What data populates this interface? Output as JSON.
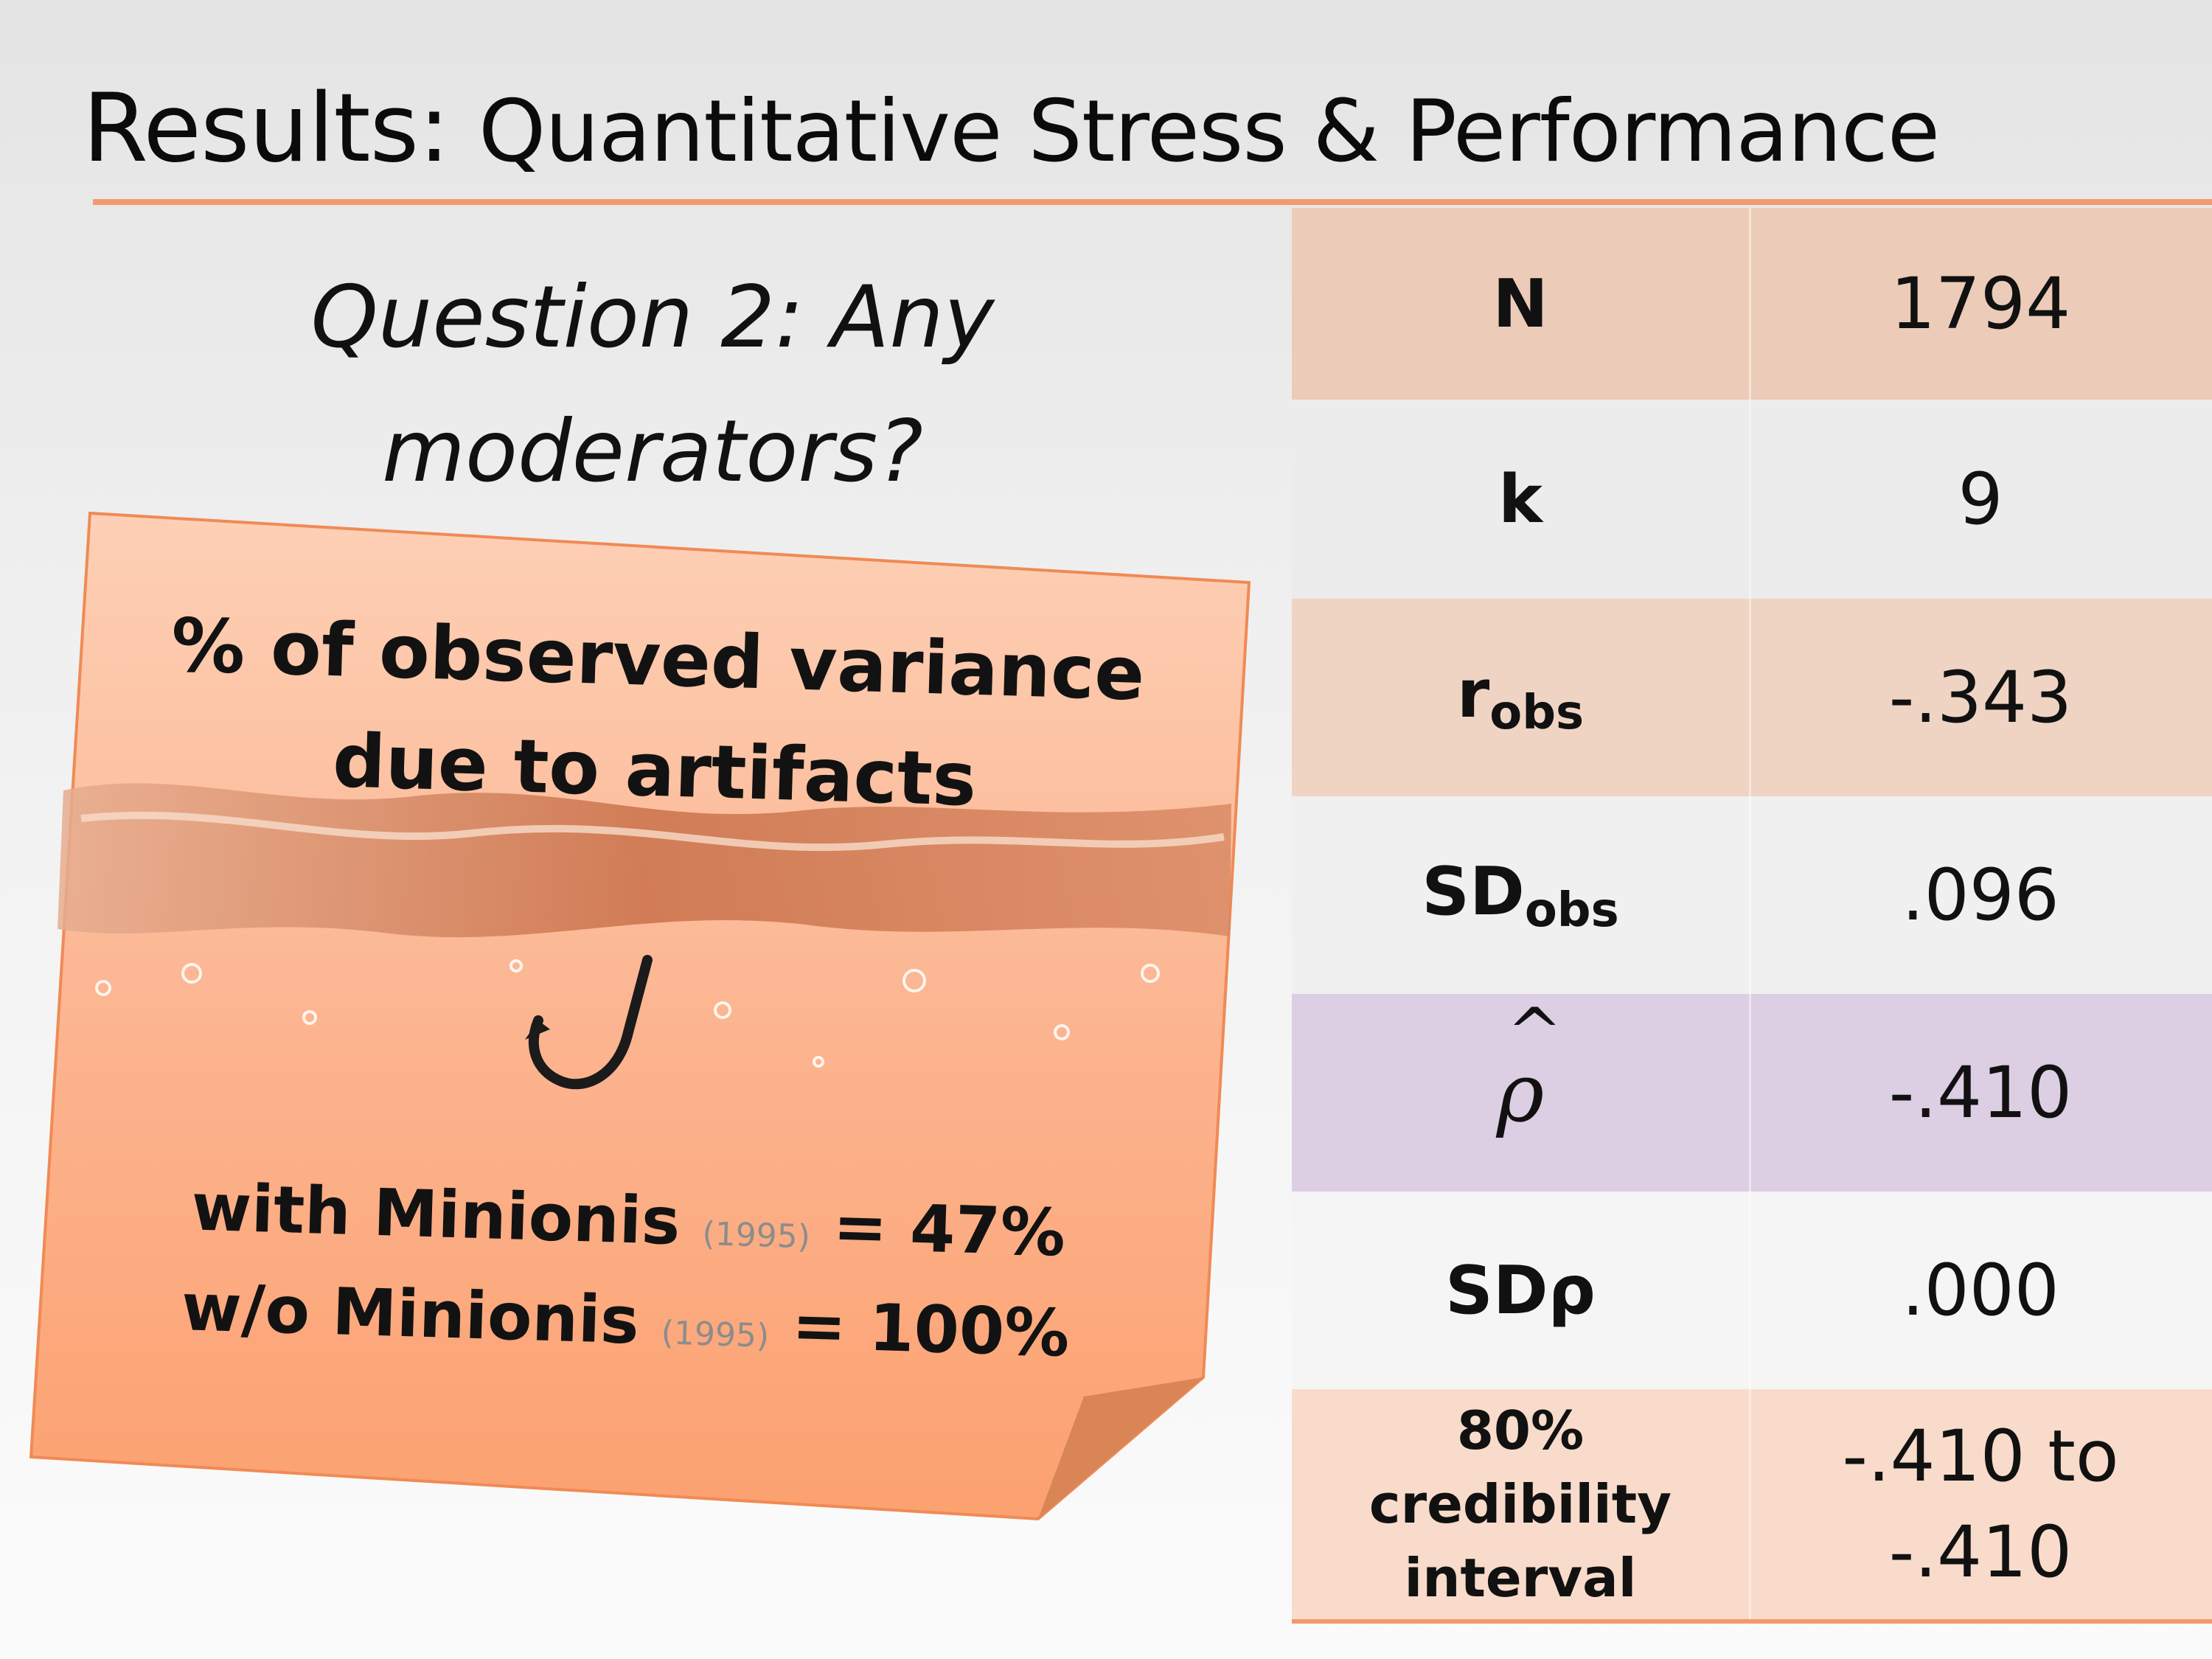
{
  "slide": {
    "title_main": "Results:",
    "title_sub": "Quantitative Stress & Performance",
    "question_line1": "Question 2: Any",
    "question_line2": "moderators?"
  },
  "note": {
    "heading_line1": "% of observed variance",
    "heading_line2": "due to artifacts",
    "with_prefix": "with Minionis",
    "with_year": "(1995)",
    "with_value": "= 47%",
    "without_prefix": "w/o Minionis",
    "without_year": "(1995)",
    "without_value": "= 100%"
  },
  "table": {
    "rows": [
      {
        "label": "N",
        "sub": "",
        "value": "1794",
        "color": "#ecccb8"
      },
      {
        "label": "k",
        "sub": "",
        "value": "9",
        "color": "#ececec"
      },
      {
        "label": "r",
        "sub": "obs",
        "value": "-.343",
        "color": "#f0d4c3"
      },
      {
        "label": "SD",
        "sub": "obs",
        "value": ".096",
        "color": "#f0f0f0"
      },
      {
        "label": "ρ",
        "sub": "",
        "value": "-.410",
        "color": "#dccee3"
      },
      {
        "label": "SDρ",
        "sub": "",
        "value": ".000",
        "color": "#f5f5f5"
      },
      {
        "label": "80% credibility interval",
        "sub": "",
        "value": "-.410 to -.410",
        "color": "#f8dbca"
      }
    ]
  },
  "colors": {
    "accent_rule": "#f29b6e",
    "note_top": "#fdc9ac",
    "note_bottom": "#fca474"
  }
}
